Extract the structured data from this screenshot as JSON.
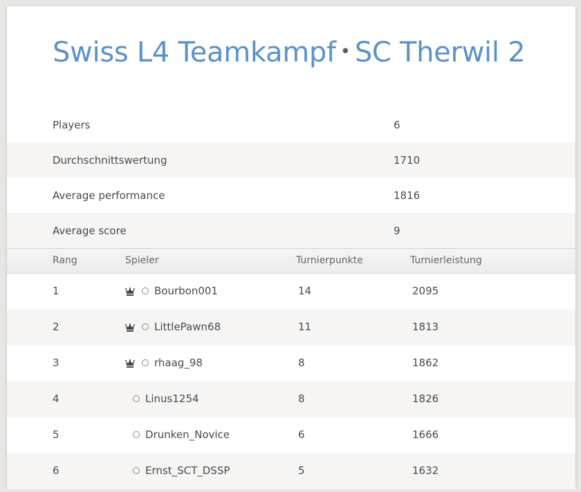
{
  "title": {
    "part1": "Swiss L4 Teamkampf",
    "separator": "•",
    "part2": "SC Therwil 2"
  },
  "stats": [
    {
      "label": "Players",
      "value": "6"
    },
    {
      "label": "Durchschnittswertung",
      "value": "1710"
    },
    {
      "label": "Average performance",
      "value": "1816"
    },
    {
      "label": "Average score",
      "value": "9"
    }
  ],
  "table": {
    "headers": {
      "rank": "Rang",
      "player": "Spieler",
      "points": "Turnierpunkte",
      "performance": "Turnierleistung"
    },
    "rows": [
      {
        "rank": "1",
        "player": "Bourbon001",
        "points": "14",
        "performance": "2095",
        "crown": true
      },
      {
        "rank": "2",
        "player": "LittlePawn68",
        "points": "11",
        "performance": "1813",
        "crown": true
      },
      {
        "rank": "3",
        "player": "rhaag_98",
        "points": "8",
        "performance": "1862",
        "crown": true
      },
      {
        "rank": "4",
        "player": "Linus1254",
        "points": "8",
        "performance": "1826",
        "crown": false
      },
      {
        "rank": "5",
        "player": "Drunken_Novice",
        "points": "6",
        "performance": "1666",
        "crown": false
      },
      {
        "rank": "6",
        "player": "Ernst_SCT_DSSP",
        "points": "5",
        "performance": "1632",
        "crown": false
      }
    ]
  },
  "icons": {
    "leader": "crown-icon",
    "status": "offline-ring-icon"
  },
  "colors": {
    "title": "#5a92c8",
    "stripe": "#f6f5f4"
  }
}
